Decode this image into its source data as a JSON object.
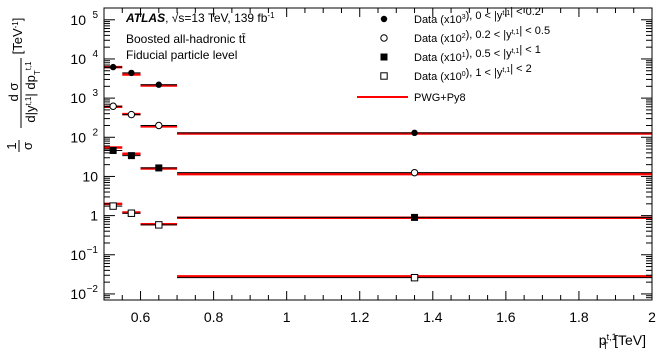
{
  "chart_data": {
    "type": "scatter",
    "log_y": true,
    "xlim": [
      0.5,
      2.0
    ],
    "ylim": [
      0.007,
      200000
    ],
    "xlabel": {
      "main": "p",
      "sub": "T",
      "sup": "t,1",
      "unit": "[TeV]"
    },
    "ylabel": {
      "prefix": "1",
      "sigma": "σ",
      "d_sigma": "d σ",
      "denominator": "d|y",
      "denominator_sup": "t,1",
      "denominator_mid": "| dp",
      "denominator_sub": "T",
      "denominator_sup2": "t,1",
      "unit": "[TeV",
      "unit_sup": "-1",
      "unit_close": "]"
    },
    "x_ticks": [
      {
        "value": 0.6,
        "label": "0.6"
      },
      {
        "value": 0.8,
        "label": "0.8"
      },
      {
        "value": 1.0,
        "label": "1"
      },
      {
        "value": 1.2,
        "label": "1.2"
      },
      {
        "value": 1.4,
        "label": "1.4"
      },
      {
        "value": 1.6,
        "label": "1.6"
      },
      {
        "value": 1.8,
        "label": "1.8"
      },
      {
        "value": 2.0,
        "label": "2"
      }
    ],
    "y_ticks": [
      {
        "value": 0.01,
        "base": "10",
        "exp": "−2"
      },
      {
        "value": 0.1,
        "base": "10",
        "exp": "−1"
      },
      {
        "value": 1,
        "base": "1",
        "exp": ""
      },
      {
        "value": 10,
        "base": "10",
        "exp": ""
      },
      {
        "value": 100,
        "base": "10",
        "exp": "2"
      },
      {
        "value": 1000,
        "base": "10",
        "exp": "3"
      },
      {
        "value": 10000,
        "base": "10",
        "exp": "4"
      },
      {
        "value": 100000,
        "base": "10",
        "exp": "5"
      }
    ],
    "bins": [
      [
        0.5,
        0.55
      ],
      [
        0.55,
        0.6
      ],
      [
        0.6,
        0.7
      ],
      [
        0.7,
        2.0
      ]
    ],
    "series": [
      {
        "name": "Data (x10<sup>3</sup>), 0 < |y<sup>t,1</sup>| < 0.2",
        "marker": "filled-circle",
        "x": [
          0.525,
          0.575,
          0.65,
          1.35
        ],
        "values": [
          6200,
          4400,
          2200,
          130
        ],
        "prediction": [
          6200,
          4000,
          2100,
          125
        ]
      },
      {
        "name": "Data (x10<sup>2</sup>), 0.2 < |y<sup>t,1</sup>| < 0.5",
        "marker": "open-circle",
        "x": [
          0.525,
          0.575,
          0.65,
          1.35
        ],
        "values": [
          620,
          380,
          200,
          12.5
        ],
        "prediction": [
          600,
          390,
          190,
          11.5
        ]
      },
      {
        "name": "Data (x10<sup>1</sup>), 0.5 < |y<sup>t,1</sup>| < 1",
        "marker": "filled-square",
        "x": [
          0.525,
          0.575,
          0.65,
          1.35
        ],
        "values": [
          46,
          34,
          16.5,
          0.9
        ],
        "prediction": [
          55,
          38,
          16,
          0.88
        ]
      },
      {
        "name": "Data (x10<sup>0</sup>), 1 < |y<sup>t,1</sup>| < 2",
        "marker": "open-square",
        "x": [
          0.525,
          0.575,
          0.65,
          1.35
        ],
        "values": [
          1.75,
          1.15,
          0.58,
          0.026
        ],
        "prediction": [
          2.0,
          1.2,
          0.6,
          0.028
        ]
      }
    ],
    "prediction_name": "PWG+Py8",
    "prediction_color": "#ff0000",
    "annotations": {
      "experiment": "ATLAS",
      "energy": ", √s=13 TeV, 139 fb",
      "energy_sup": "-1",
      "line2": "Boosted all-hadronic tt̄",
      "line3": "Fiducial particle level"
    },
    "legend_position": "top-right",
    "grid": false
  }
}
